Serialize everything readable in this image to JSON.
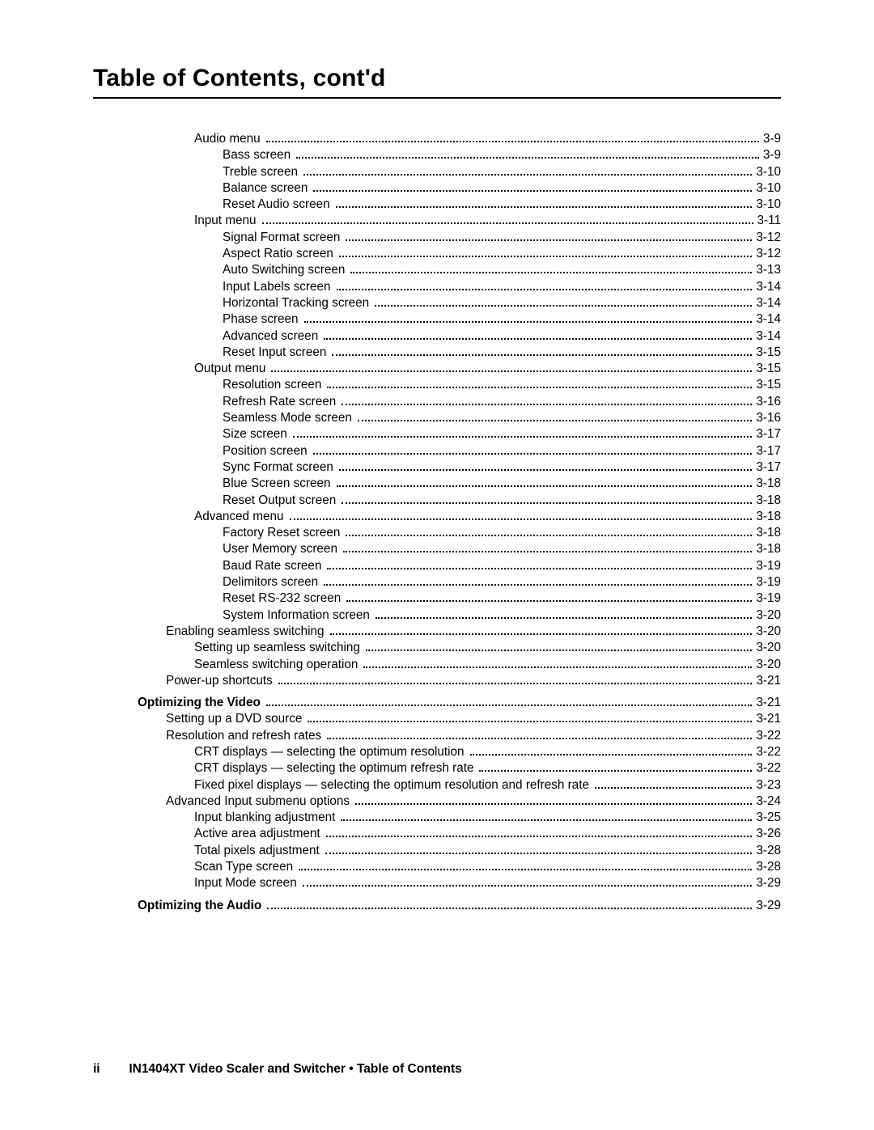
{
  "title": "Table of Contents, cont'd",
  "footer": {
    "pagenum": "ii",
    "text": "IN1404XT Video Scaler and Switcher • Table of Contents"
  },
  "entries": [
    {
      "level": 2,
      "label": "Audio menu",
      "page": "3-9"
    },
    {
      "level": 3,
      "label": "Bass screen",
      "page": "3-9"
    },
    {
      "level": 3,
      "label": "Treble screen",
      "page": "3-10"
    },
    {
      "level": 3,
      "label": "Balance screen",
      "page": "3-10"
    },
    {
      "level": 3,
      "label": "Reset Audio screen",
      "page": "3-10"
    },
    {
      "level": 2,
      "label": "Input menu",
      "page": "3-11"
    },
    {
      "level": 3,
      "label": "Signal Format screen",
      "page": "3-12"
    },
    {
      "level": 3,
      "label": "Aspect Ratio screen",
      "page": "3-12"
    },
    {
      "level": 3,
      "label": "Auto Switching screen",
      "page": "3-13"
    },
    {
      "level": 3,
      "label": "Input Labels screen",
      "page": "3-14"
    },
    {
      "level": 3,
      "label": "Horizontal Tracking screen",
      "page": "3-14"
    },
    {
      "level": 3,
      "label": "Phase screen",
      "page": "3-14"
    },
    {
      "level": 3,
      "label": "Advanced screen",
      "page": "3-14"
    },
    {
      "level": 3,
      "label": "Reset Input screen",
      "page": "3-15"
    },
    {
      "level": 2,
      "label": "Output menu",
      "page": "3-15"
    },
    {
      "level": 3,
      "label": "Resolution screen",
      "page": "3-15"
    },
    {
      "level": 3,
      "label": "Refresh Rate screen",
      "page": "3-16"
    },
    {
      "level": 3,
      "label": "Seamless Mode screen",
      "page": "3-16"
    },
    {
      "level": 3,
      "label": "Size screen",
      "page": "3-17"
    },
    {
      "level": 3,
      "label": "Position screen",
      "page": "3-17"
    },
    {
      "level": 3,
      "label": "Sync Format screen",
      "page": "3-17"
    },
    {
      "level": 3,
      "label": "Blue Screen screen",
      "page": "3-18"
    },
    {
      "level": 3,
      "label": "Reset Output screen",
      "page": "3-18"
    },
    {
      "level": 2,
      "label": "Advanced menu",
      "page": "3-18"
    },
    {
      "level": 3,
      "label": "Factory Reset screen",
      "page": "3-18"
    },
    {
      "level": 3,
      "label": "User Memory screen",
      "page": "3-18"
    },
    {
      "level": 3,
      "label": "Baud Rate screen",
      "page": "3-19"
    },
    {
      "level": 3,
      "label": "Delimitors screen",
      "page": "3-19"
    },
    {
      "level": 3,
      "label": "Reset RS-232 screen",
      "page": "3-19"
    },
    {
      "level": 3,
      "label": "System Information screen",
      "page": "3-20"
    },
    {
      "level": 1,
      "label": "Enabling seamless switching",
      "page": "3-20"
    },
    {
      "level": 2,
      "label": "Setting up seamless switching",
      "page": "3-20"
    },
    {
      "level": 2,
      "label": "Seamless switching operation",
      "page": "3-20"
    },
    {
      "level": 1,
      "label": "Power-up shortcuts",
      "page": "3-21"
    },
    {
      "level": 0,
      "label": "Optimizing the Video",
      "page": "3-21",
      "bold": true,
      "gap": true
    },
    {
      "level": 1,
      "label": "Setting up a DVD source",
      "page": "3-21"
    },
    {
      "level": 1,
      "label": "Resolution and refresh rates",
      "page": "3-22"
    },
    {
      "level": 2,
      "label": "CRT displays — selecting the optimum resolution",
      "page": "3-22"
    },
    {
      "level": 2,
      "label": "CRT displays — selecting the optimum refresh rate",
      "page": "3-22"
    },
    {
      "level": 2,
      "label": "Fixed pixel displays — selecting the optimum resolution and refresh rate",
      "page": "3-23"
    },
    {
      "level": 1,
      "label": "Advanced Input submenu options",
      "page": "3-24"
    },
    {
      "level": 2,
      "label": "Input blanking adjustment",
      "page": "3-25"
    },
    {
      "level": 2,
      "label": "Active area adjustment",
      "page": "3-26"
    },
    {
      "level": 2,
      "label": "Total pixels adjustment",
      "page": "3-28"
    },
    {
      "level": 2,
      "label": "Scan Type screen",
      "page": "3-28"
    },
    {
      "level": 2,
      "label": "Input Mode screen",
      "page": "3-29"
    },
    {
      "level": 0,
      "label": "Optimizing the Audio",
      "page": "3-29",
      "bold": true,
      "gap": true
    }
  ]
}
